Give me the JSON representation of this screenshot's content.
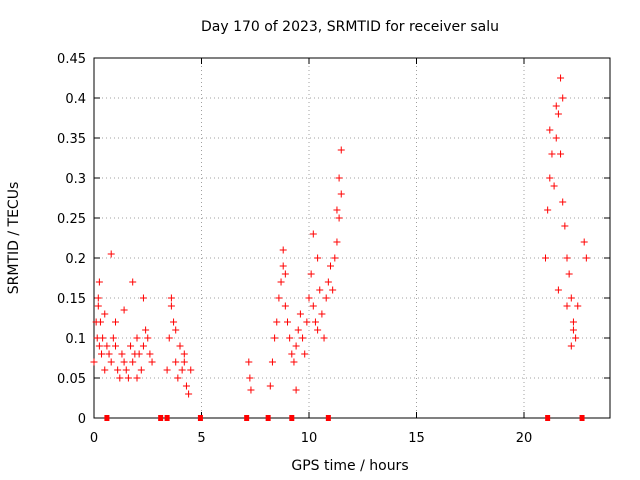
{
  "chart_data": {
    "type": "scatter",
    "title": "Day 170 of 2023, SRMTID for receiver salu",
    "xlabel": "GPS time / hours",
    "ylabel": "SRMTID / TECUs",
    "xlim": [
      0,
      24
    ],
    "ylim": [
      0,
      0.45
    ],
    "xticks": [
      0,
      5,
      10,
      15,
      20
    ],
    "xtick_labels": [
      "0",
      "5",
      "10",
      "15",
      "20"
    ],
    "yticks": [
      0,
      0.05,
      0.1,
      0.15,
      0.2,
      0.25,
      0.3,
      0.35,
      0.4,
      0.45
    ],
    "ytick_labels": [
      "0",
      "0.05",
      "0.1",
      "0.15",
      "0.2",
      "0.25",
      "0.3",
      "0.35",
      "0.4",
      "0.45"
    ],
    "grid": true,
    "marker": "+",
    "color": "#ff0000",
    "series": [
      {
        "name": "SRMTID",
        "x": [
          0.0,
          0.1,
          0.15,
          0.2,
          0.25,
          0.3,
          0.35,
          0.4,
          0.5,
          0.6,
          0.7,
          0.8,
          0.9,
          1.0,
          1.1,
          1.2,
          1.3,
          1.4,
          1.5,
          1.6,
          1.7,
          1.8,
          1.9,
          2.0,
          2.1,
          2.2,
          2.3,
          2.4,
          2.5,
          2.6,
          2.7,
          0.8,
          1.8,
          0.25,
          0.2,
          1.0,
          1.4,
          2.3,
          0.5,
          2.0,
          3.4,
          3.5,
          3.6,
          3.7,
          3.8,
          3.9,
          4.0,
          4.1,
          4.2,
          4.3,
          4.4,
          4.5,
          3.6,
          3.8,
          4.2,
          7.2,
          7.25,
          7.3,
          8.2,
          8.3,
          8.4,
          8.5,
          8.6,
          8.7,
          8.8,
          8.9,
          9.0,
          9.1,
          9.2,
          9.3,
          9.4,
          9.5,
          9.6,
          9.7,
          9.8,
          9.9,
          10.0,
          10.1,
          10.2,
          10.3,
          10.4,
          10.5,
          10.6,
          10.7,
          10.8,
          10.9,
          11.0,
          11.1,
          11.2,
          11.3,
          11.4,
          11.5,
          8.8,
          8.9,
          9.4,
          10.2,
          10.4,
          11.5,
          11.4,
          11.3,
          21.0,
          21.1,
          21.2,
          21.3,
          21.4,
          21.5,
          21.6,
          21.7,
          21.8,
          21.9,
          22.0,
          22.1,
          22.2,
          22.3,
          22.4,
          22.5,
          22.8,
          22.9,
          21.5,
          21.7,
          21.8,
          21.6,
          22.2,
          22.3,
          22.0,
          21.2
        ],
        "y": [
          0.07,
          0.12,
          0.1,
          0.14,
          0.09,
          0.12,
          0.08,
          0.1,
          0.06,
          0.09,
          0.08,
          0.07,
          0.1,
          0.09,
          0.06,
          0.05,
          0.08,
          0.07,
          0.06,
          0.05,
          0.09,
          0.07,
          0.08,
          0.1,
          0.08,
          0.06,
          0.09,
          0.11,
          0.1,
          0.08,
          0.07,
          0.205,
          0.17,
          0.17,
          0.15,
          0.12,
          0.135,
          0.15,
          0.13,
          0.05,
          0.06,
          0.1,
          0.14,
          0.12,
          0.07,
          0.05,
          0.09,
          0.06,
          0.08,
          0.04,
          0.03,
          0.06,
          0.15,
          0.11,
          0.07,
          0.07,
          0.05,
          0.035,
          0.04,
          0.07,
          0.1,
          0.12,
          0.15,
          0.17,
          0.19,
          0.14,
          0.12,
          0.1,
          0.08,
          0.07,
          0.09,
          0.11,
          0.13,
          0.1,
          0.08,
          0.12,
          0.15,
          0.18,
          0.14,
          0.12,
          0.11,
          0.16,
          0.13,
          0.1,
          0.15,
          0.17,
          0.19,
          0.16,
          0.2,
          0.22,
          0.25,
          0.28,
          0.21,
          0.18,
          0.035,
          0.23,
          0.2,
          0.335,
          0.3,
          0.26,
          0.2,
          0.26,
          0.3,
          0.33,
          0.29,
          0.35,
          0.38,
          0.33,
          0.27,
          0.24,
          0.2,
          0.18,
          0.15,
          0.12,
          0.1,
          0.14,
          0.22,
          0.2,
          0.39,
          0.425,
          0.4,
          0.16,
          0.09,
          0.11,
          0.14,
          0.36
        ],
        "zero_markers_x": [
          0.6,
          3.1,
          3.4,
          4.95,
          7.1,
          8.1,
          9.2,
          10.9,
          21.1,
          22.7
        ]
      }
    ]
  }
}
